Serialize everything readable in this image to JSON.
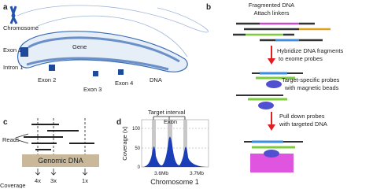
{
  "panels": {
    "a": {
      "label": "a",
      "chromosome": "Chromosome",
      "gene": "Gene",
      "exon1": "Exon 1",
      "intron1": "Intron 1",
      "exon2": "Exon 2",
      "exon3": "Exon 3",
      "exon4": "Exon 4",
      "dna": "DNA"
    },
    "b": {
      "label": "b",
      "step1": [
        "Fragmented DNA",
        "Attach linkers"
      ],
      "step2": [
        "Hybridize DNA fragments",
        "to exome probes"
      ],
      "step3": [
        "Target-specific probes",
        "with magnetic beads"
      ],
      "step4": [
        "Pull down probes",
        "with targeted DNA"
      ]
    },
    "c": {
      "label": "c",
      "reads": "Reads",
      "genomic": "Genomic DNA",
      "coverages": [
        "4x",
        "3x",
        "1x"
      ],
      "coverage": "Coverage"
    },
    "d": {
      "label": "d",
      "target": "Target interval",
      "exon": "Exon",
      "ylabel": "Coverage (x)",
      "yticks": [
        "100",
        "50",
        "0"
      ],
      "xticks": [
        "3.6Mb",
        "3.7Mb"
      ],
      "xlabel": "Chromosome 1"
    }
  }
}
